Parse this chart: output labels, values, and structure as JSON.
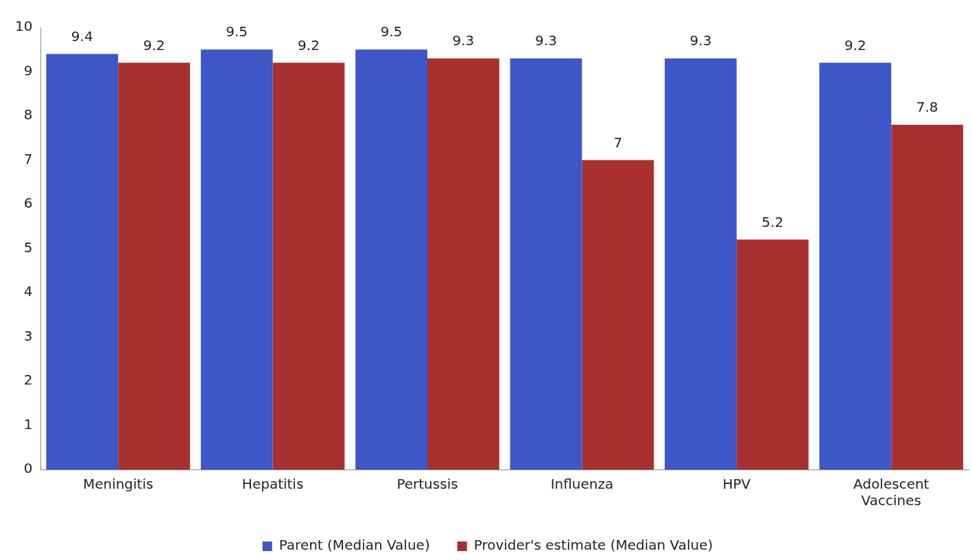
{
  "chart_data": {
    "type": "bar",
    "categories": [
      "Meningitis",
      "Hepatitis",
      "Pertussis",
      "Influenza",
      "HPV",
      "Adolescent Vaccines"
    ],
    "series": [
      {
        "name": "Parent (Median Value)",
        "color": "#3d56c8",
        "values": [
          9.4,
          9.5,
          9.5,
          9.3,
          9.3,
          9.2
        ]
      },
      {
        "name": "Provider's estimate (Median Value)",
        "color": "#a8302f",
        "values": [
          9.2,
          9.2,
          9.3,
          7,
          5.2,
          7.8
        ]
      }
    ],
    "ylim": [
      0,
      10
    ],
    "yticks": [
      0,
      1,
      2,
      3,
      4,
      5,
      6,
      7,
      8,
      9,
      10
    ],
    "grid": false,
    "legend": "bottom",
    "data_labels": true
  }
}
